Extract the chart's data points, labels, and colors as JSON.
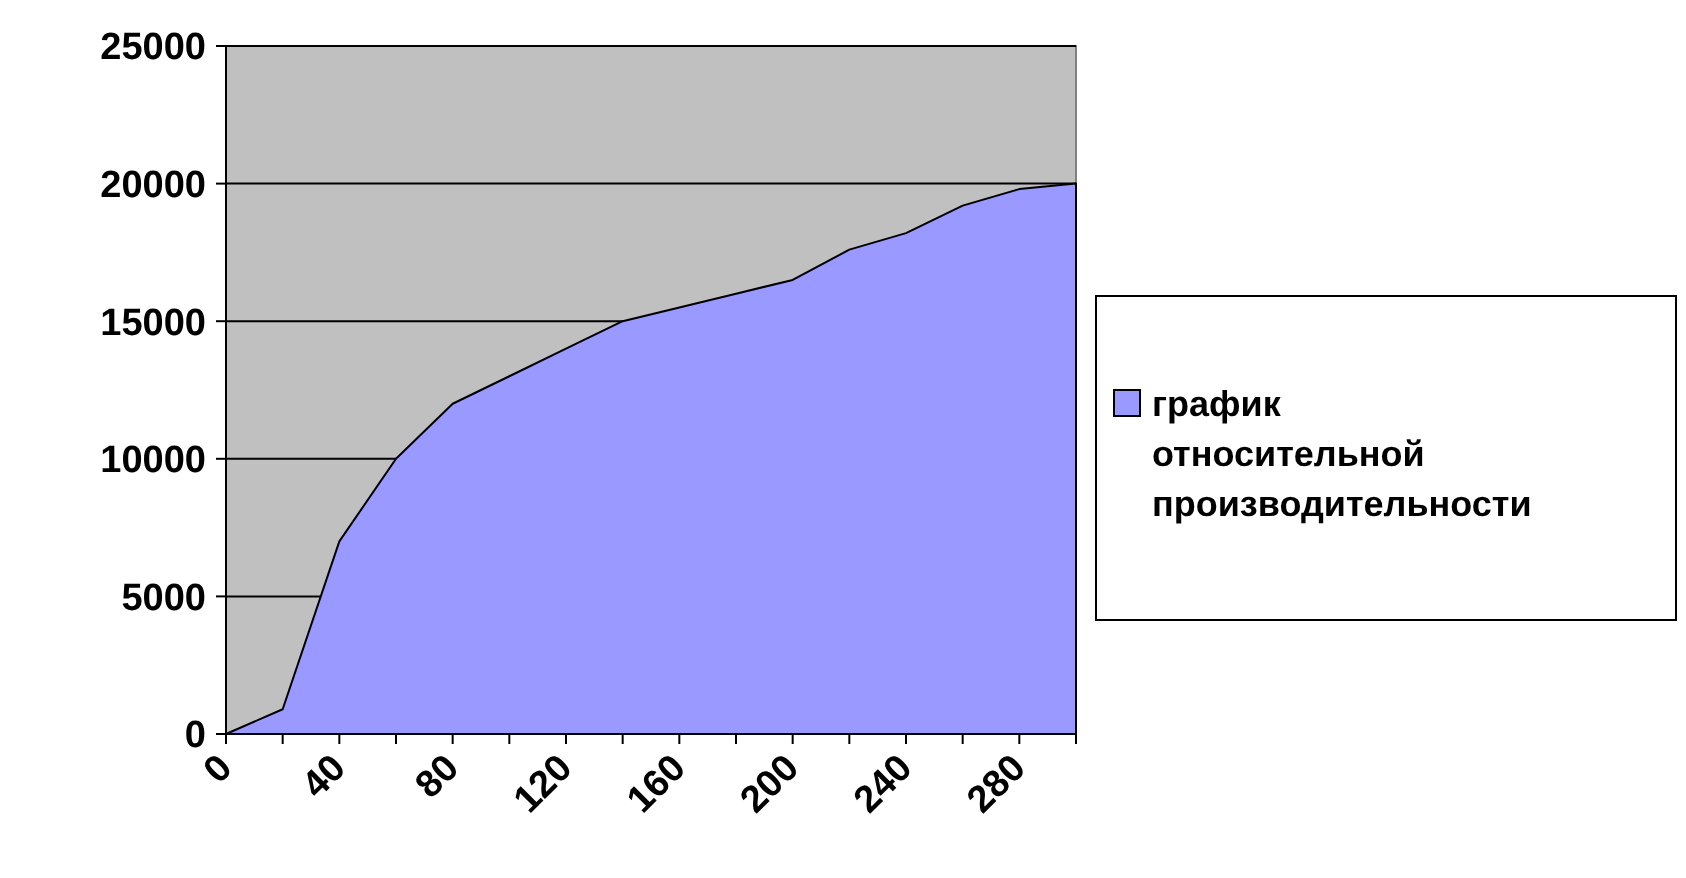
{
  "chart_data": {
    "type": "area",
    "categories": [
      "0",
      null,
      "40",
      null,
      "80",
      null,
      "120",
      null,
      "160",
      null,
      "200",
      null,
      "240",
      null,
      "280",
      null
    ],
    "series": [
      {
        "name": "график относительной производительности",
        "color": "#9999ff",
        "values": [
          0,
          900,
          7000,
          10000,
          12000,
          13000,
          14000,
          15000,
          15500,
          16000,
          16500,
          17600,
          18200,
          19200,
          19800,
          20000
        ]
      }
    ],
    "ylim": [
      0,
      25000
    ],
    "yticks": [
      0,
      5000,
      10000,
      15000,
      20000,
      25000
    ],
    "grid": "y",
    "legend": "right"
  }
}
